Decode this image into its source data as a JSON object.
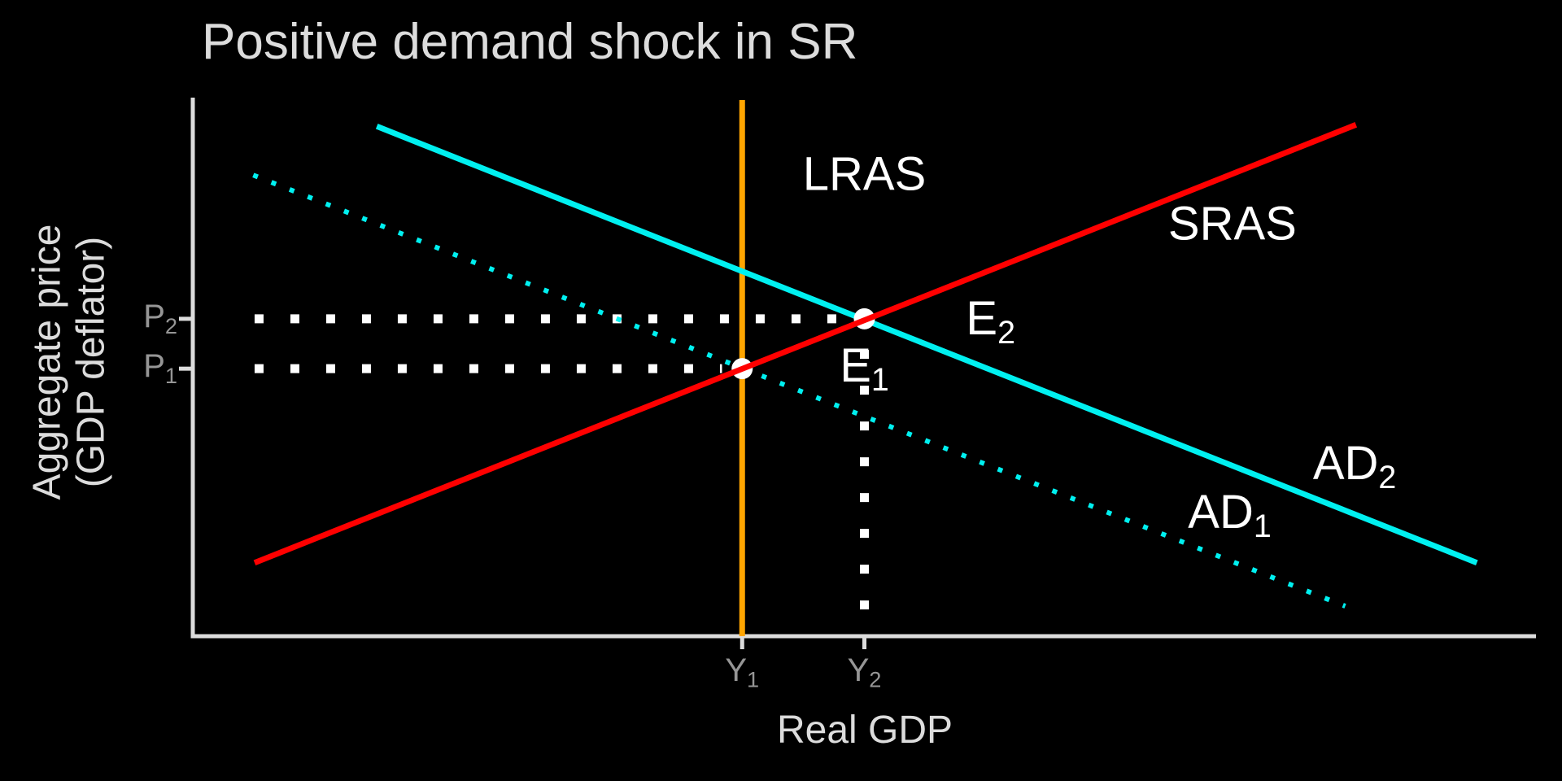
{
  "title": "Positive demand shock in SR",
  "axes": {
    "x_label": "Real GDP",
    "y_label_line1": "Aggregate price",
    "y_label_line2": "(GDP deflator)",
    "x_ticks": [
      {
        "base": "Y",
        "sub": "1",
        "u": 40.9
      },
      {
        "base": "Y",
        "sub": "2",
        "u": 50.0
      }
    ],
    "y_ticks": [
      {
        "base": "P",
        "sub": "2",
        "v": 59.2
      },
      {
        "base": "P",
        "sub": "1",
        "v": 49.9
      }
    ]
  },
  "colors": {
    "background": "#000000",
    "axis": "#DCDCDC",
    "tick_text": "#969696",
    "label_text": "#DCDCDC",
    "annotation_text": "#FFFFFF",
    "lras": "#FFA500",
    "sras": "#FF0000",
    "ad": "#00F0F0",
    "guide": "#FFFFFF"
  },
  "chart_data": {
    "type": "line",
    "title": "Positive demand shock in SR",
    "xlabel": "Real GDP",
    "ylabel": "Aggregate price (GDP deflator)",
    "axis_units": "qualitative economics diagram; no numeric scale — coordinates are percent of axis length",
    "xlim": [
      0,
      100
    ],
    "ylim": [
      0,
      100
    ],
    "grid": false,
    "legend": "none (inline curve labels)",
    "series": [
      {
        "name": "AD1",
        "label": {
          "base": "AD",
          "sub": "1"
        },
        "style": "dotted",
        "color": "ad",
        "width": 6,
        "dash": "6 18",
        "layer": 1,
        "points": [
          [
            4.5,
            86.0
          ],
          [
            85.8,
            5.6
          ]
        ]
      },
      {
        "name": "LRAS",
        "label": {
          "base": "LRAS",
          "sub": ""
        },
        "style": "solid",
        "color": "lras",
        "width": 7,
        "dash": "",
        "layer": 1,
        "points": [
          [
            40.9,
            0
          ],
          [
            40.9,
            100
          ]
        ]
      },
      {
        "name": "AD2",
        "label": {
          "base": "AD",
          "sub": "2"
        },
        "style": "solid",
        "color": "ad",
        "width": 7,
        "dash": "",
        "layer": 1,
        "points": [
          [
            13.7,
            95.1
          ],
          [
            95.6,
            13.7
          ]
        ]
      },
      {
        "name": "SRAS",
        "label": {
          "base": "SRAS",
          "sub": ""
        },
        "style": "solid",
        "color": "sras",
        "width": 7,
        "dash": "",
        "layer": 2,
        "points": [
          [
            4.6,
            13.7
          ],
          [
            86.6,
            95.4
          ]
        ]
      }
    ],
    "equilibrium_points": [
      {
        "name": "E1",
        "x": 40.9,
        "y": 49.9,
        "x_tick": "Y1",
        "y_tick": "P1"
      },
      {
        "name": "E2",
        "x": 50.0,
        "y": 59.2,
        "x_tick": "Y2",
        "y_tick": "P2"
      }
    ],
    "point_radius": 13,
    "guides": [
      {
        "name": "P2-horizontal",
        "from": [
          4.6,
          59.2
        ],
        "to": [
          48.6,
          59.2
        ]
      },
      {
        "name": "P1-horizontal",
        "from": [
          4.6,
          49.9
        ],
        "to": [
          39.4,
          49.9
        ]
      },
      {
        "name": "Y2-vertical",
        "from": [
          50.0,
          53.4
        ],
        "to": [
          50.0,
          4.9
        ]
      }
    ],
    "annotations": [
      {
        "base": "LRAS",
        "sub": "",
        "x": 50.0,
        "y": 86.2
      },
      {
        "base": "SRAS",
        "sub": "",
        "x": 77.4,
        "y": 76.9
      },
      {
        "base": "E",
        "sub": "2",
        "x": 59.4,
        "y": 58.7
      },
      {
        "base": "E",
        "sub": "1",
        "x": 50.0,
        "y": 49.9
      },
      {
        "base": "AD",
        "sub": "2",
        "x": 86.5,
        "y": 31.7
      },
      {
        "base": "AD",
        "sub": "1",
        "x": 77.2,
        "y": 22.6
      }
    ]
  }
}
